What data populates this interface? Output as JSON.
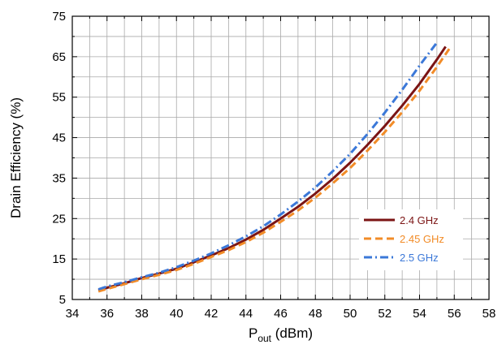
{
  "chart_data": {
    "type": "line",
    "title": "",
    "xlabel": {
      "main": "P",
      "sub": "out",
      "rest": " (dBm)"
    },
    "ylabel": "Drain Efficiency (%)",
    "xlim": [
      34,
      58
    ],
    "ylim": [
      5,
      75
    ],
    "x_ticks": [
      34,
      36,
      38,
      40,
      42,
      44,
      46,
      48,
      50,
      52,
      54,
      56,
      58
    ],
    "y_ticks": [
      5,
      15,
      25,
      35,
      45,
      55,
      65,
      75
    ],
    "x_minor_step": 1,
    "y_minor_step": 5,
    "grid": true,
    "legend_position": "lower-right",
    "series": [
      {
        "name": "2.4 GHz",
        "color": "#7b1414",
        "style": "solid",
        "x": [
          35.5,
          36,
          37,
          38,
          39,
          40,
          41,
          42,
          43,
          44,
          45,
          46,
          47,
          48,
          49,
          50,
          51,
          52,
          53,
          54,
          55,
          55.5
        ],
        "y": [
          7.3,
          7.9,
          9.0,
          10.3,
          11.4,
          12.6,
          14.2,
          15.9,
          17.7,
          19.8,
          22.2,
          25.0,
          27.9,
          31.2,
          34.8,
          38.8,
          43.2,
          47.9,
          52.9,
          58.3,
          64.3,
          67.5
        ]
      },
      {
        "name": "2.45 GHz",
        "color": "#f28c28",
        "style": "dashed",
        "x": [
          35.5,
          36,
          37,
          38,
          39,
          40,
          41,
          42,
          43,
          44,
          45,
          46,
          47,
          48,
          49,
          50,
          51,
          52,
          53,
          54,
          55,
          55.8
        ],
        "y": [
          7.0,
          7.6,
          8.8,
          10.0,
          11.1,
          12.3,
          13.8,
          15.5,
          17.2,
          19.2,
          21.5,
          24.2,
          27.0,
          30.2,
          33.7,
          37.5,
          41.8,
          46.4,
          51.3,
          56.6,
          62.5,
          67.5
        ]
      },
      {
        "name": "2.5 GHz",
        "color": "#3b78d8",
        "style": "dashdot",
        "x": [
          35.5,
          36,
          37,
          38,
          39,
          40,
          41,
          42,
          43,
          44,
          45,
          46,
          47,
          48,
          49,
          50,
          51,
          52,
          53,
          54,
          55
        ],
        "y": [
          7.5,
          8.2,
          9.3,
          10.5,
          11.6,
          13.0,
          14.6,
          16.4,
          18.4,
          20.6,
          23.1,
          26.0,
          29.2,
          32.7,
          36.7,
          41.0,
          45.9,
          51.2,
          56.8,
          62.8,
          68.5
        ]
      }
    ]
  }
}
